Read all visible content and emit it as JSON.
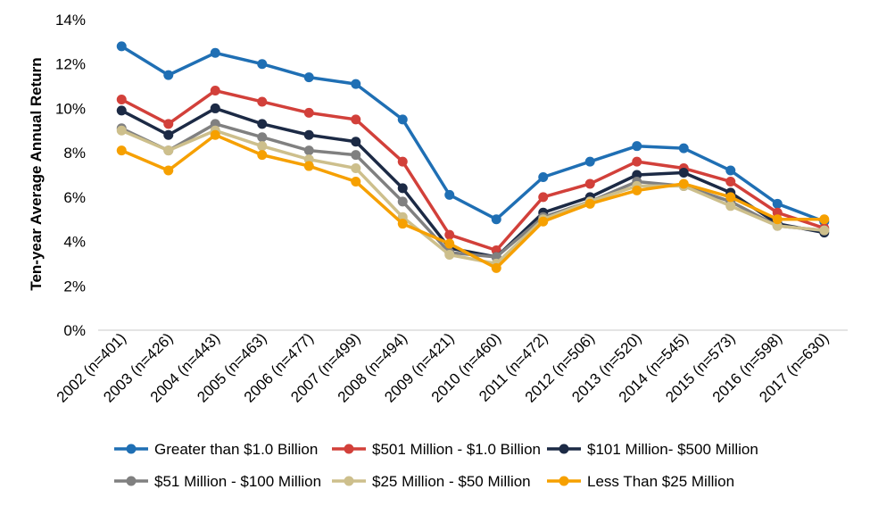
{
  "chart_data": {
    "type": "line",
    "title": "",
    "xlabel": "",
    "ylabel": "Ten-year Average Annual Return",
    "ylim": [
      0,
      14
    ],
    "yticks": [
      "0%",
      "2%",
      "4%",
      "6%",
      "8%",
      "10%",
      "12%",
      "14%"
    ],
    "categories": [
      "2002 (n=401)",
      "2003 (n=426)",
      "2004 (n=443)",
      "2005 (n=463)",
      "2006 (n=477)",
      "2007 (n=499)",
      "2008 (n=494)",
      "2009 (n=421)",
      "2010 (n=460)",
      "2011 (n=472)",
      "2012 (n=506)",
      "2013 (n=520)",
      "2014 (n=545)",
      "2015 (n=573)",
      "2016 (n=598)",
      "2017 (n=630)"
    ],
    "grid": false,
    "legend_position": "bottom",
    "series": [
      {
        "name": "Greater than $1.0 Billion",
        "color": "#1f6fb4",
        "values": [
          12.8,
          11.5,
          12.5,
          12.0,
          11.4,
          11.1,
          9.5,
          6.1,
          5.0,
          6.9,
          7.6,
          8.3,
          8.2,
          7.2,
          5.7,
          4.9
        ]
      },
      {
        "name": "$501 Million - $1.0 Billion",
        "color": "#d2403a",
        "values": [
          10.4,
          9.3,
          10.8,
          10.3,
          9.8,
          9.5,
          7.6,
          4.3,
          3.6,
          6.0,
          6.6,
          7.6,
          7.3,
          6.7,
          5.3,
          4.6
        ]
      },
      {
        "name": "$101 Million- $500 Million",
        "color": "#1c2a45",
        "values": [
          9.9,
          8.8,
          10.0,
          9.3,
          8.8,
          8.5,
          6.4,
          3.7,
          3.3,
          5.3,
          6.0,
          7.0,
          7.1,
          6.2,
          4.8,
          4.4
        ]
      },
      {
        "name": "$51 Million - $100 Million",
        "color": "#808080",
        "values": [
          9.1,
          8.1,
          9.3,
          8.7,
          8.1,
          7.9,
          5.8,
          3.5,
          3.3,
          5.1,
          5.8,
          6.7,
          6.5,
          5.8,
          4.7,
          4.5
        ]
      },
      {
        "name": "$25 Million - $50 Million",
        "color": "#cdbf8c",
        "values": [
          9.0,
          8.1,
          9.0,
          8.3,
          7.7,
          7.3,
          5.1,
          3.4,
          3.0,
          5.0,
          5.8,
          6.5,
          6.5,
          5.6,
          4.7,
          4.5
        ]
      },
      {
        "name": "Less Than $25 Million",
        "color": "#f6a000",
        "values": [
          8.1,
          7.2,
          8.8,
          7.9,
          7.4,
          6.7,
          4.8,
          3.9,
          2.8,
          4.9,
          5.7,
          6.3,
          6.6,
          6.0,
          5.0,
          5.0
        ]
      }
    ]
  }
}
